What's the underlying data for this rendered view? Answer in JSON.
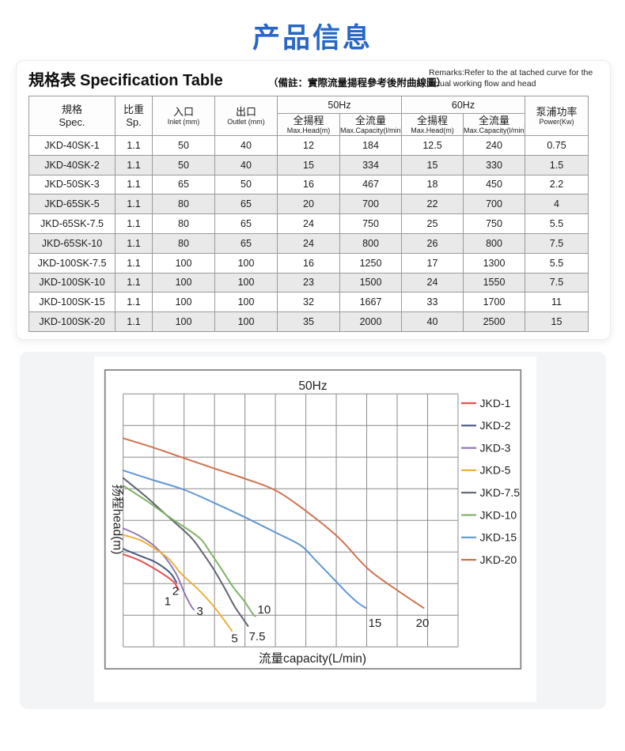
{
  "page": {
    "title": "产品信息"
  },
  "spec_section": {
    "title_zh": "規格表",
    "title_en": "Specification Table",
    "note": "（備註：實際流量揚程參考後附曲線圖）",
    "remarks": "Remarks:Refer to the at tached curve for the actual working flow and head",
    "table": {
      "headers": {
        "spec_zh": "規格",
        "spec_en": "Spec.",
        "sp_zh": "比重",
        "sp_en": "Sp.",
        "inlet_zh": "入口",
        "inlet_en": "Inlet (mm)",
        "outlet_zh": "出口",
        "outlet_en": "Outlet (mm)",
        "hz50": "50Hz",
        "hz60": "60Hz",
        "head_zh": "全揚程",
        "head_en": "Max.Head(m)",
        "cap_zh": "全流量",
        "cap_en": "Max.Capacity(l/min)",
        "power_zh": "泵浦功率",
        "power_en": "Power(Kw)"
      },
      "rows": [
        [
          "JKD-40SK-1",
          "1.1",
          "50",
          "40",
          "12",
          "184",
          "12.5",
          "240",
          "0.75"
        ],
        [
          "JKD-40SK-2",
          "1.1",
          "50",
          "40",
          "15",
          "334",
          "15",
          "330",
          "1.5"
        ],
        [
          "JKD-50SK-3",
          "1.1",
          "65",
          "50",
          "16",
          "467",
          "18",
          "450",
          "2.2"
        ],
        [
          "JKD-65SK-5",
          "1.1",
          "80",
          "65",
          "20",
          "700",
          "22",
          "700",
          "4"
        ],
        [
          "JKD-65SK-7.5",
          "1.1",
          "80",
          "65",
          "24",
          "750",
          "25",
          "750",
          "5.5"
        ],
        [
          "JKD-65SK-10",
          "1.1",
          "80",
          "65",
          "24",
          "800",
          "26",
          "800",
          "7.5"
        ],
        [
          "JKD-100SK-7.5",
          "1.1",
          "100",
          "100",
          "16",
          "1250",
          "17",
          "1300",
          "5.5"
        ],
        [
          "JKD-100SK-10",
          "1.1",
          "100",
          "100",
          "23",
          "1500",
          "24",
          "1550",
          "7.5"
        ],
        [
          "JKD-100SK-15",
          "1.1",
          "100",
          "100",
          "32",
          "1667",
          "33",
          "1700",
          "11"
        ],
        [
          "JKD-100SK-20",
          "1.1",
          "100",
          "100",
          "35",
          "2000",
          "40",
          "2500",
          "15"
        ]
      ]
    }
  },
  "chart_data": {
    "type": "line",
    "title": "50Hz",
    "xlabel": "流量capacity(L/min)",
    "ylabel": "扬程head(m)",
    "grid": {
      "cols": 11,
      "rows": 8,
      "tick_labels": "none (unlabeled grid)"
    },
    "legend_position": "right",
    "note": "points are in grid units: x = columns from left (0-11), y = rows from top (0-8)",
    "series": [
      {
        "name": "JKD-1",
        "color": "#e8514d",
        "end_label": "1",
        "label_pos": [
          1.46,
          6.54
        ],
        "points": [
          [
            0,
            5.07
          ],
          [
            0.5,
            5.25
          ],
          [
            1.0,
            5.51
          ],
          [
            1.41,
            5.76
          ],
          [
            1.67,
            5.96
          ],
          [
            1.82,
            6.19
          ]
        ]
      },
      {
        "name": "JKD-2",
        "color": "#47597f",
        "end_label": "2",
        "label_pos": [
          1.72,
          6.22
        ],
        "points": [
          [
            0,
            4.9
          ],
          [
            0.55,
            5.12
          ],
          [
            1.0,
            5.29
          ],
          [
            1.36,
            5.51
          ],
          [
            1.59,
            5.71
          ],
          [
            1.75,
            5.96
          ]
        ]
      },
      {
        "name": "JKD-3",
        "color": "#9577b5",
        "end_label": "3",
        "label_pos": [
          2.52,
          6.86
        ],
        "points": [
          [
            0,
            4.25
          ],
          [
            0.5,
            4.47
          ],
          [
            1.0,
            4.79
          ],
          [
            1.41,
            5.21
          ],
          [
            1.75,
            5.71
          ],
          [
            2.01,
            6.29
          ],
          [
            2.22,
            6.69
          ],
          [
            2.32,
            6.82
          ]
        ]
      },
      {
        "name": "JKD-5",
        "color": "#ebb040",
        "end_label": "5",
        "label_pos": [
          3.66,
          7.72
        ],
        "points": [
          [
            0,
            4.46
          ],
          [
            0.55,
            4.62
          ],
          [
            1.0,
            4.87
          ],
          [
            1.49,
            5.21
          ],
          [
            1.93,
            5.71
          ],
          [
            2.4,
            6.12
          ],
          [
            2.89,
            6.62
          ],
          [
            3.23,
            7.04
          ],
          [
            3.57,
            7.49
          ]
        ]
      },
      {
        "name": "JKD-7.5",
        "color": "#5f6571",
        "end_label": "7.5",
        "label_pos": [
          4.4,
          7.66
        ],
        "points": [
          [
            0,
            2.66
          ],
          [
            0.75,
            3.25
          ],
          [
            1.5,
            3.9
          ],
          [
            2.23,
            4.54
          ],
          [
            2.62,
            5.04
          ],
          [
            2.97,
            5.54
          ],
          [
            3.32,
            6.12
          ],
          [
            3.66,
            6.72
          ],
          [
            3.93,
            7.1
          ],
          [
            4.1,
            7.34
          ]
        ]
      },
      {
        "name": "JKD-10",
        "color": "#83b266",
        "end_label": "10",
        "label_pos": [
          4.63,
          6.8
        ],
        "points": [
          [
            0,
            2.9
          ],
          [
            0.8,
            3.4
          ],
          [
            1.6,
            3.95
          ],
          [
            2.49,
            4.54
          ],
          [
            2.88,
            5.04
          ],
          [
            3.23,
            5.54
          ],
          [
            3.62,
            6.12
          ],
          [
            3.97,
            6.54
          ],
          [
            4.23,
            6.92
          ],
          [
            4.34,
            7.03
          ]
        ]
      },
      {
        "name": "JKD-15",
        "color": "#6197d6",
        "end_label": "15",
        "label_pos": [
          8.27,
          7.23
        ],
        "points": [
          [
            0,
            2.42
          ],
          [
            1.0,
            2.73
          ],
          [
            2.0,
            3.03
          ],
          [
            3.0,
            3.45
          ],
          [
            4.0,
            3.9
          ],
          [
            5.0,
            4.38
          ],
          [
            5.83,
            4.79
          ],
          [
            6.3,
            5.24
          ],
          [
            6.78,
            5.72
          ],
          [
            7.3,
            6.24
          ],
          [
            7.69,
            6.59
          ],
          [
            7.97,
            6.77
          ]
        ]
      },
      {
        "name": "JKD-20",
        "color": "#cf7350",
        "end_label": "20",
        "label_pos": [
          9.83,
          7.23
        ],
        "points": [
          [
            0,
            1.4
          ],
          [
            1.0,
            1.7
          ],
          [
            2.0,
            2.03
          ],
          [
            3.0,
            2.36
          ],
          [
            4.0,
            2.68
          ],
          [
            5.0,
            3.05
          ],
          [
            6.0,
            3.7
          ],
          [
            7.07,
            4.54
          ],
          [
            8.05,
            5.54
          ],
          [
            9.05,
            6.24
          ],
          [
            9.87,
            6.77
          ]
        ]
      }
    ]
  }
}
